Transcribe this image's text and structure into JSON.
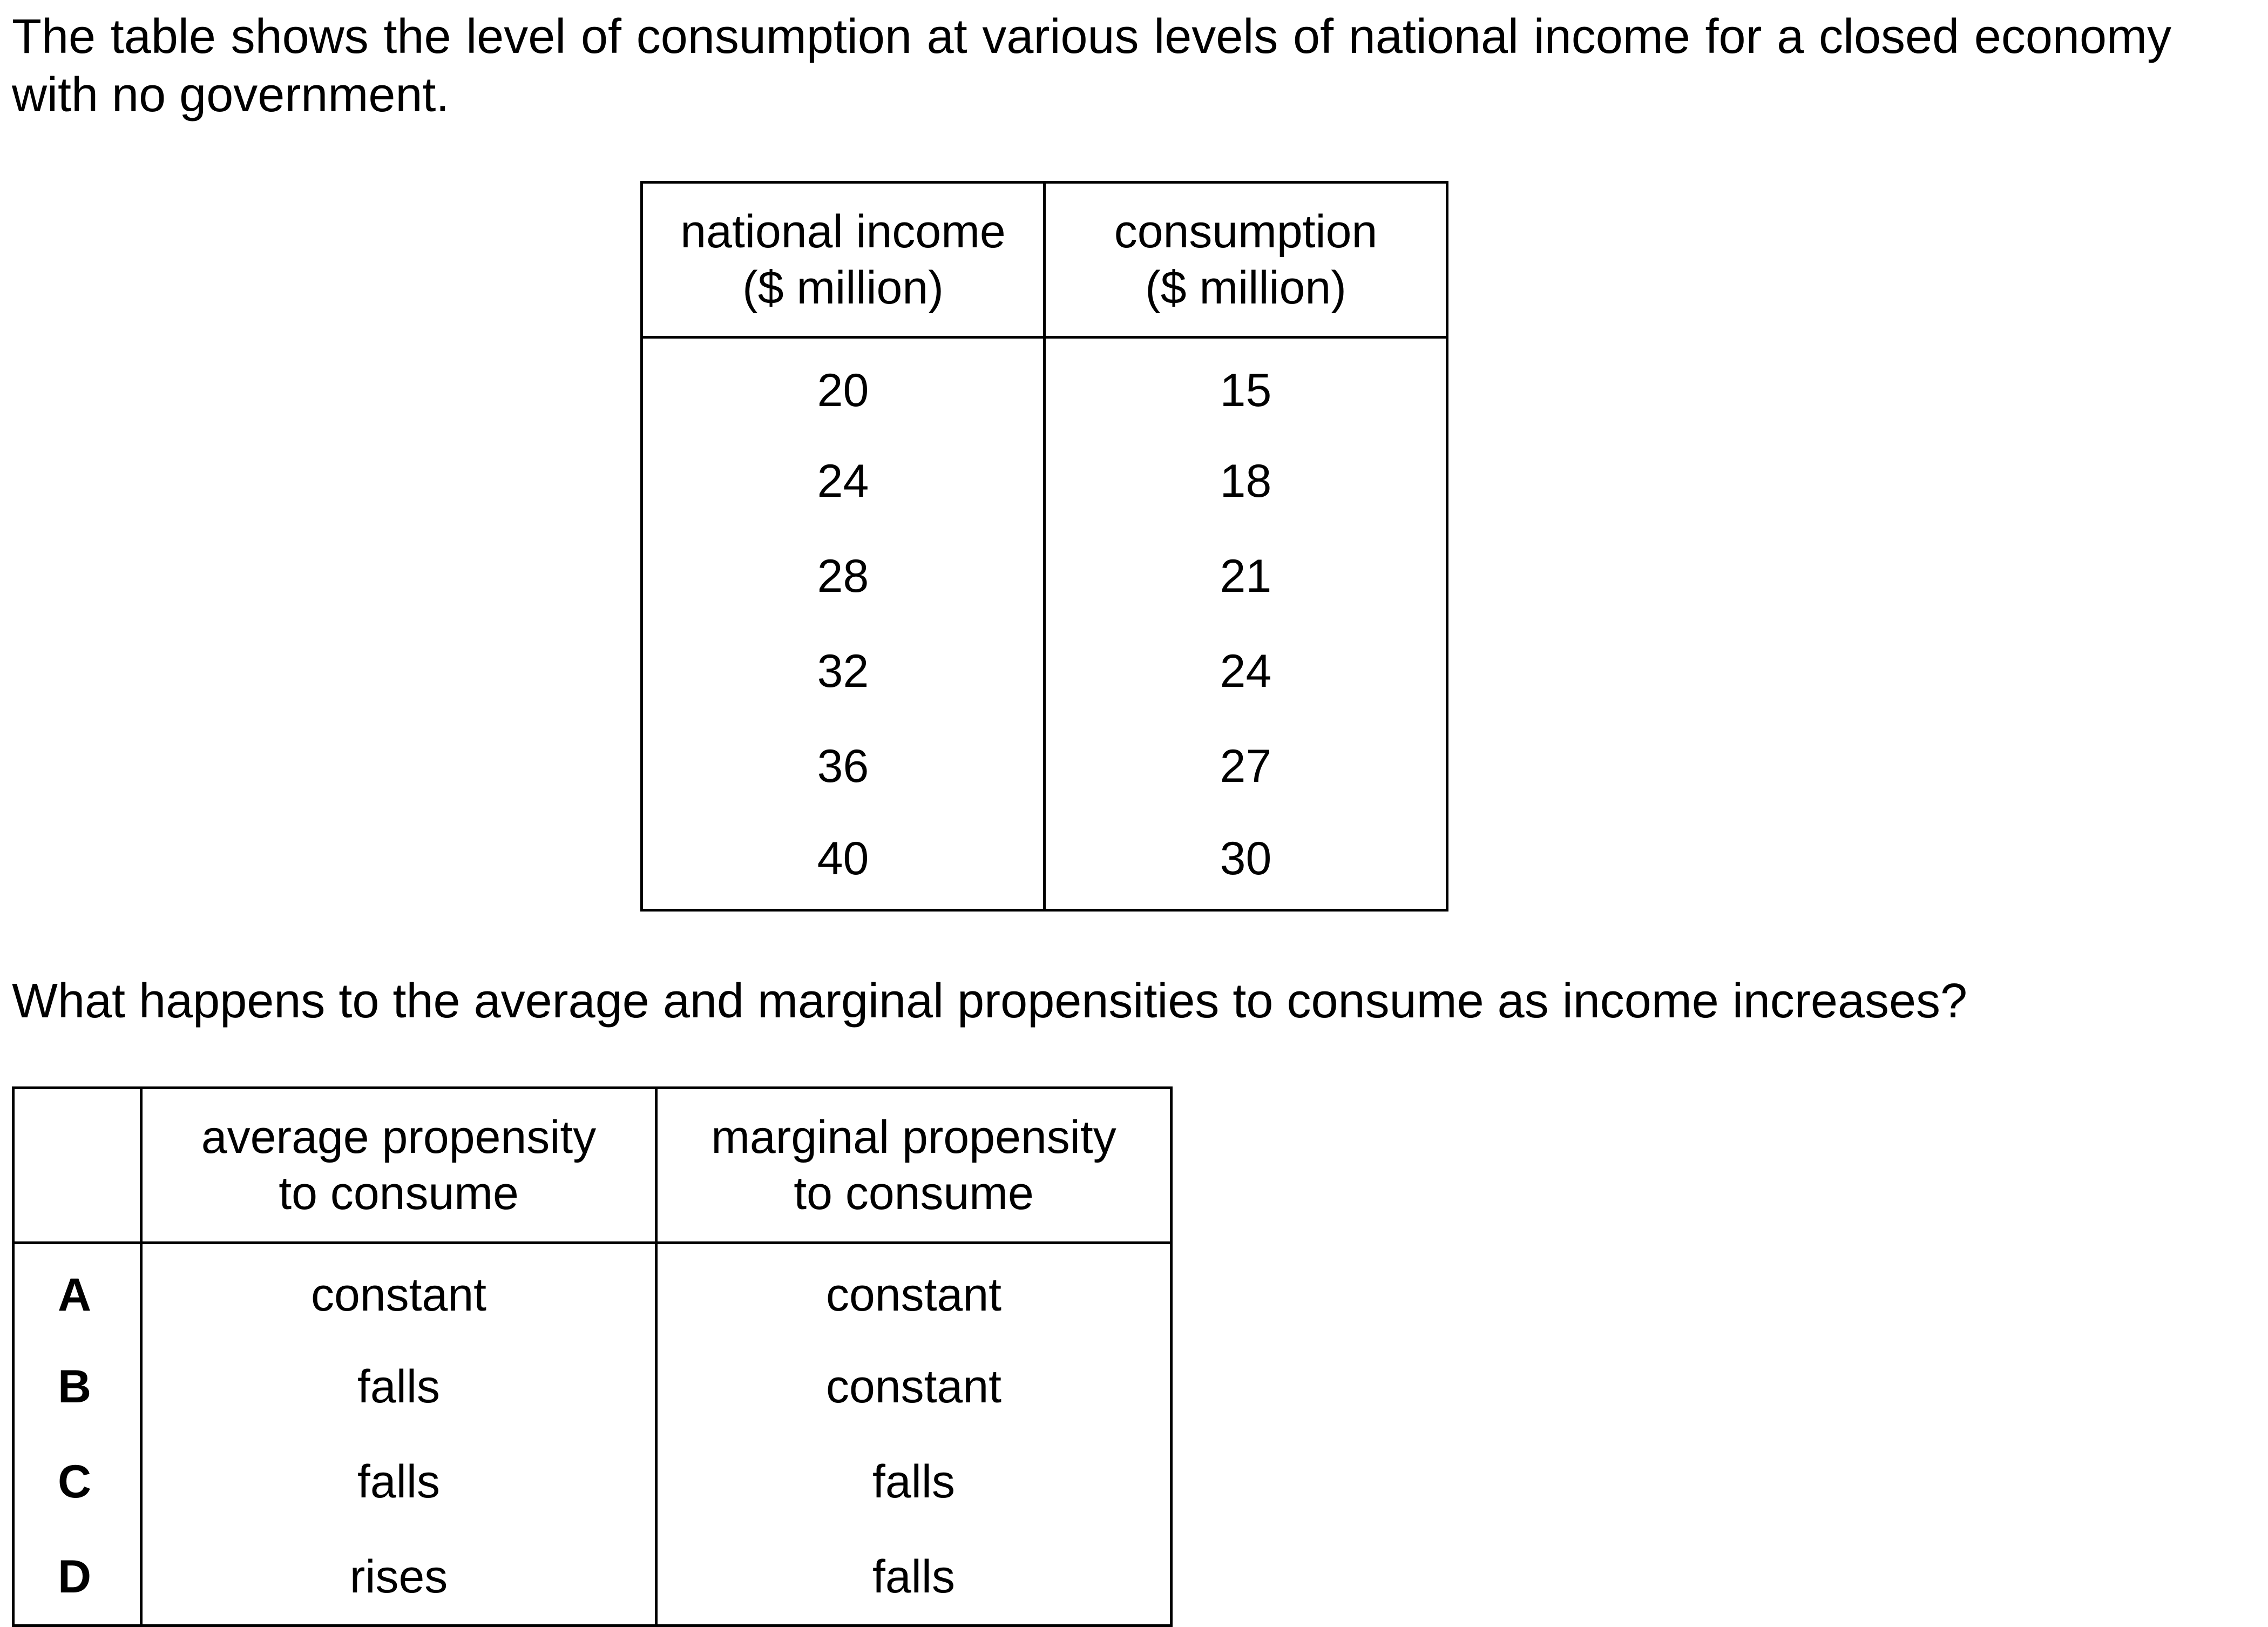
{
  "intro": "The table shows the level of consumption at various levels of national income for a closed economy with no government.",
  "data_table": {
    "headers": [
      {
        "line1": "national income",
        "line2": "($ million)"
      },
      {
        "line1": "consumption",
        "line2": "($ million)"
      }
    ],
    "rows": [
      [
        "20",
        "15"
      ],
      [
        "24",
        "18"
      ],
      [
        "28",
        "21"
      ],
      [
        "32",
        "24"
      ],
      [
        "36",
        "27"
      ],
      [
        "40",
        "30"
      ]
    ]
  },
  "question": "What happens to the average and marginal propensities to consume as income increases?",
  "options_table": {
    "headers": [
      {
        "line1": "",
        "line2": ""
      },
      {
        "line1": "average propensity",
        "line2": "to consume"
      },
      {
        "line1": "marginal propensity",
        "line2": "to consume"
      }
    ],
    "rows": [
      {
        "key": "A",
        "apc": "constant",
        "mpc": "constant"
      },
      {
        "key": "B",
        "apc": "falls",
        "mpc": "constant"
      },
      {
        "key": "C",
        "apc": "falls",
        "mpc": "falls"
      },
      {
        "key": "D",
        "apc": "rises",
        "mpc": "falls"
      }
    ]
  }
}
